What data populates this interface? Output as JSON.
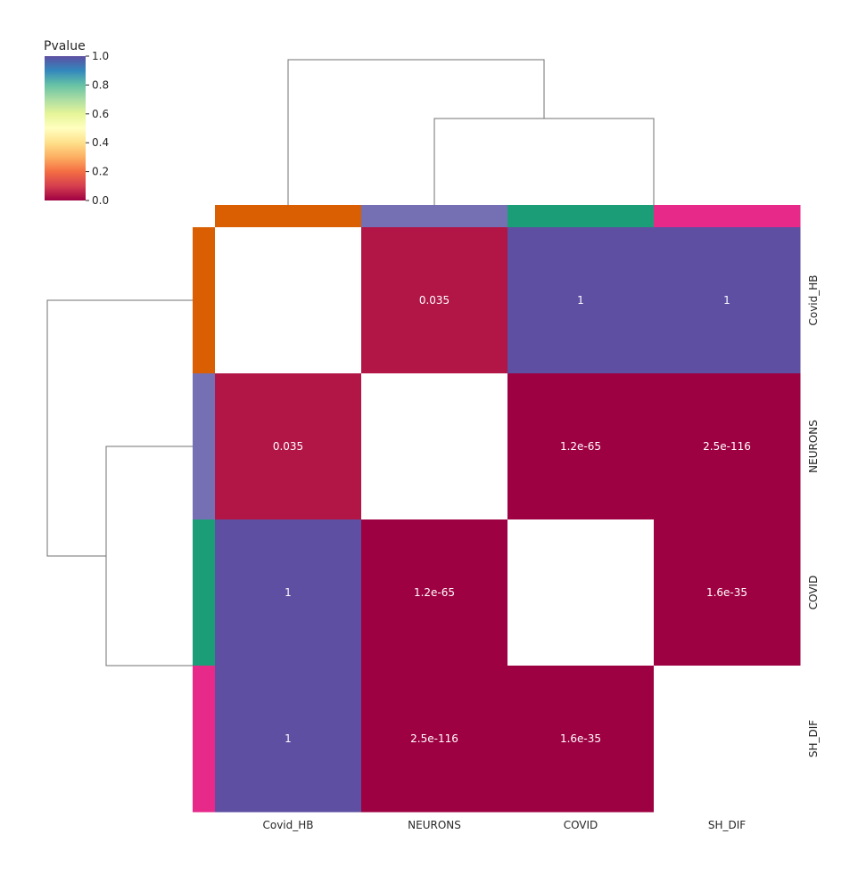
{
  "chart_data": {
    "type": "heatmap",
    "title": "",
    "colorbar": {
      "title": "Pvalue",
      "range": [
        0.0,
        1.0
      ],
      "ticks": [
        "0.0",
        "0.2",
        "0.4",
        "0.6",
        "0.8",
        "1.0"
      ],
      "colormap": "Spectral"
    },
    "columns": [
      "Covid_HB",
      "NEURONS",
      "COVID",
      "SH_DIF"
    ],
    "rows": [
      "Covid_HB",
      "NEURONS",
      "COVID",
      "SH_DIF"
    ],
    "group_colors": [
      "#d95f02",
      "#7570b3",
      "#1b9e77",
      "#e7298a"
    ],
    "values": [
      [
        null,
        0.035,
        1,
        1
      ],
      [
        0.035,
        null,
        1.2e-65,
        2.5e-116
      ],
      [
        1,
        1.2e-65,
        null,
        1.6e-35
      ],
      [
        1,
        2.5e-116,
        1.6e-35,
        null
      ]
    ],
    "annotations": [
      [
        "",
        "0.035",
        "1",
        "1"
      ],
      [
        "0.035",
        "",
        "1.2e-65",
        "2.5e-116"
      ],
      [
        "1",
        "1.2e-65",
        "",
        "1.6e-35"
      ],
      [
        "1",
        "2.5e-116",
        "1.6e-35",
        ""
      ]
    ],
    "dendrogram": {
      "order": [
        "Covid_HB",
        "NEURONS",
        "COVID",
        "SH_DIF"
      ],
      "merges": [
        {
          "members": [
            "COVID",
            "SH_DIF"
          ]
        },
        {
          "members": [
            "NEURONS",
            "COVID",
            "SH_DIF"
          ]
        },
        {
          "members": [
            "Covid_HB",
            "NEURONS",
            "COVID",
            "SH_DIF"
          ]
        }
      ]
    }
  }
}
